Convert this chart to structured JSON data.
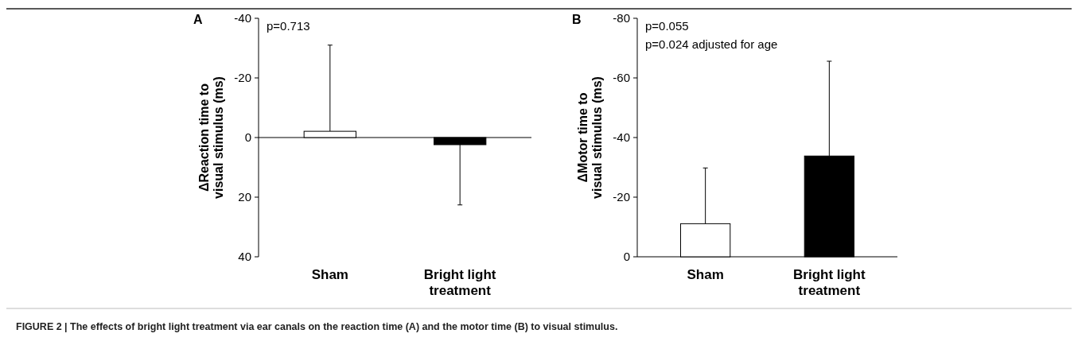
{
  "chart_data": [
    {
      "type": "bar",
      "title": "A",
      "ylabel": "ΔReaction time to visual stimulus (ms)",
      "categories": [
        "Sham",
        "Bright light treatment"
      ],
      "values": [
        -2.1,
        2.4
      ],
      "colors": [
        "#ffffff",
        "#000000"
      ],
      "errors": [
        [
          -31,
          -2.1
        ],
        [
          2.4,
          22.6
        ]
      ],
      "ylim": [
        40,
        -40
      ],
      "yticks": [
        -40,
        -20,
        0,
        20,
        40
      ],
      "annotations": [
        "p=0.713",
        "FIGURE 2 | The effects of bright light treatment via ear canals on the reaction time (A) and the motor time (B) to visual stimulus."
      ]
    },
    {
      "type": "bar",
      "title": "B",
      "ylabel": "ΔMotor time to visual stimulus (ms)",
      "categories": [
        "Sham",
        "Bright light treatment"
      ],
      "values": [
        -11.1,
        -33.8
      ],
      "colors": [
        "#ffffff",
        "#000000"
      ],
      "errors": [
        [
          -29.8,
          -11.1
        ],
        [
          -65.6,
          -33.8
        ]
      ],
      "ylim": [
        0,
        -80
      ],
      "yticks": [
        -80,
        -60,
        -40,
        -20,
        0
      ],
      "annotations": [
        "p=0.055",
        "p=0.024 adjusted for age"
      ]
    }
  ]
}
